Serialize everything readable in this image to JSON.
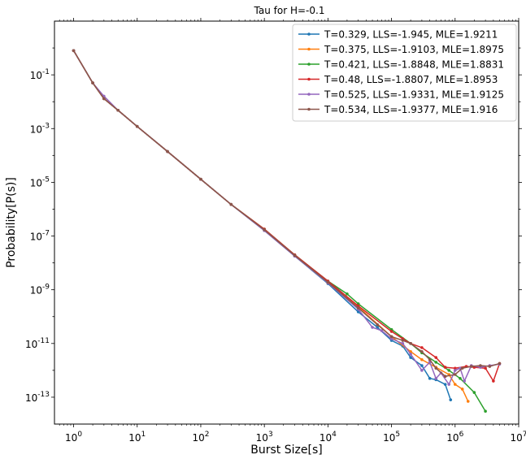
{
  "chart_data": {
    "type": "line",
    "title": "Tau for H=-0.1",
    "xlabel": "Burst Size[s]",
    "ylabel": "Probability[P(s)]",
    "xscale": "log",
    "yscale": "log",
    "xlim": [
      0.5,
      10000000
    ],
    "ylim": [
      1e-14,
      10
    ],
    "grid": false,
    "legend_position": "top-right",
    "x_ticks": [
      {
        "value": 1,
        "label": "10^0"
      },
      {
        "value": 10,
        "label": "10^1"
      },
      {
        "value": 100,
        "label": "10^2"
      },
      {
        "value": 1000,
        "label": "10^3"
      },
      {
        "value": 10000,
        "label": "10^4"
      },
      {
        "value": 100000,
        "label": "10^5"
      },
      {
        "value": 1000000,
        "label": "10^6"
      },
      {
        "value": 10000000,
        "label": "10^7"
      }
    ],
    "y_ticks": [
      {
        "value": 1e-13,
        "label": "10^-13"
      },
      {
        "value": 1e-11,
        "label": "10^-11"
      },
      {
        "value": 1e-09,
        "label": "10^-9"
      },
      {
        "value": 1e-07,
        "label": "10^-7"
      },
      {
        "value": 1e-05,
        "label": "10^-5"
      },
      {
        "value": 0.001,
        "label": "10^-3"
      },
      {
        "value": 0.1,
        "label": "10^-1"
      }
    ],
    "series": [
      {
        "name": "T=0.329, LLS=-1.945, MLE=1.9211",
        "color": "#1f77b4",
        "x": [
          1,
          2,
          3,
          5,
          10,
          30,
          100,
          300,
          1000,
          3000,
          10000,
          30000,
          60000,
          100000,
          150000,
          200000,
          300000,
          400000,
          500000,
          700000,
          850000
        ],
        "y": [
          0.8,
          0.05,
          0.013,
          0.0048,
          0.0012,
          0.00014,
          1.3e-05,
          1.5e-06,
          1.6e-07,
          1.8e-08,
          1.7e-09,
          1.5e-10,
          4e-11,
          1.3e-11,
          8e-12,
          3e-12,
          1.5e-12,
          5e-13,
          4.5e-13,
          3e-13,
          8e-14
        ]
      },
      {
        "name": "T=0.375, LLS=-1.9103, MLE=1.8975",
        "color": "#ff7f0e",
        "x": [
          1,
          2,
          3,
          5,
          10,
          30,
          100,
          300,
          1000,
          3000,
          10000,
          30000,
          100000,
          200000,
          300000,
          500000,
          800000,
          1000000,
          1300000,
          1600000
        ],
        "y": [
          0.8,
          0.05,
          0.013,
          0.0048,
          0.0012,
          0.00014,
          1.3e-05,
          1.5e-06,
          1.7e-07,
          1.9e-08,
          1.9e-09,
          2.3e-10,
          1.8e-11,
          5e-12,
          2.5e-12,
          1.3e-12,
          7e-13,
          3e-13,
          2e-13,
          7e-14
        ]
      },
      {
        "name": "T=0.421, LLS=-1.8848, MLE=1.8831",
        "color": "#2ca02c",
        "x": [
          1,
          2,
          3,
          5,
          10,
          30,
          100,
          300,
          1000,
          3000,
          10000,
          20000,
          30000,
          100000,
          200000,
          300000,
          500000,
          800000,
          1200000,
          2000000,
          3000000
        ],
        "y": [
          0.8,
          0.05,
          0.013,
          0.0048,
          0.0012,
          0.00014,
          1.3e-05,
          1.5e-06,
          1.8e-07,
          2e-08,
          2.1e-09,
          7e-10,
          3e-10,
          3.3e-11,
          1e-11,
          4.5e-12,
          2e-12,
          1e-12,
          5e-13,
          1.5e-13,
          3e-14
        ]
      },
      {
        "name": "T=0.48, LLS=-1.8807, MLE=1.8953",
        "color": "#d62728",
        "x": [
          1,
          2,
          3,
          5,
          10,
          30,
          100,
          300,
          1000,
          3000,
          10000,
          30000,
          100000,
          150000,
          200000,
          300000,
          500000,
          700000,
          1000000,
          1500000,
          2000000,
          3000000,
          4000000,
          5000000
        ],
        "y": [
          0.8,
          0.05,
          0.013,
          0.0048,
          0.0012,
          0.00014,
          1.3e-05,
          1.5e-06,
          1.8e-07,
          2e-08,
          2.1e-09,
          2.5e-10,
          2.8e-11,
          1.5e-11,
          1e-11,
          7e-12,
          3e-12,
          1.3e-12,
          1.2e-12,
          1.4e-12,
          1.3e-12,
          1.2e-12,
          4e-13,
          1.8e-12
        ]
      },
      {
        "name": "T=0.525, LLS=-1.9331, MLE=1.9125",
        "color": "#9467bd",
        "x": [
          1,
          2,
          3,
          5,
          10,
          30,
          100,
          300,
          1000,
          3000,
          10000,
          30000,
          50000,
          70000,
          100000,
          150000,
          200000,
          300000,
          400000,
          500000,
          600000,
          800000,
          1000000,
          1200000,
          1400000,
          1800000,
          2500000,
          3500000,
          5000000
        ],
        "y": [
          0.8,
          0.05,
          0.016,
          0.0048,
          0.0012,
          0.00014,
          1.3e-05,
          1.5e-06,
          1.6e-07,
          1.8e-08,
          1.8e-09,
          1.9e-10,
          4e-11,
          3e-11,
          1.5e-11,
          1e-11,
          4e-12,
          1e-12,
          2e-12,
          5e-13,
          8e-13,
          3e-13,
          1e-12,
          1.2e-12,
          4e-13,
          1.5e-12,
          1.3e-12,
          1.5e-12,
          1.7e-12
        ]
      },
      {
        "name": "T=0.534, LLS=-1.9377, MLE=1.916",
        "color": "#8c564b",
        "x": [
          1,
          2,
          3,
          5,
          10,
          30,
          100,
          300,
          1000,
          3000,
          10000,
          30000,
          60000,
          100000,
          150000,
          200000,
          300000,
          400000,
          500000,
          700000,
          1000000,
          1300000,
          1800000,
          2500000,
          3500000,
          5000000
        ],
        "y": [
          0.8,
          0.05,
          0.013,
          0.0048,
          0.0012,
          0.00014,
          1.3e-05,
          1.5e-06,
          1.7e-07,
          1.9e-08,
          1.9e-09,
          2.1e-10,
          5e-11,
          1.8e-11,
          1.3e-11,
          1e-11,
          5e-12,
          2.5e-12,
          1.2e-12,
          6e-13,
          7e-13,
          1.2e-12,
          1.4e-12,
          1.5e-12,
          1.4e-12,
          1.8e-12
        ]
      }
    ]
  }
}
